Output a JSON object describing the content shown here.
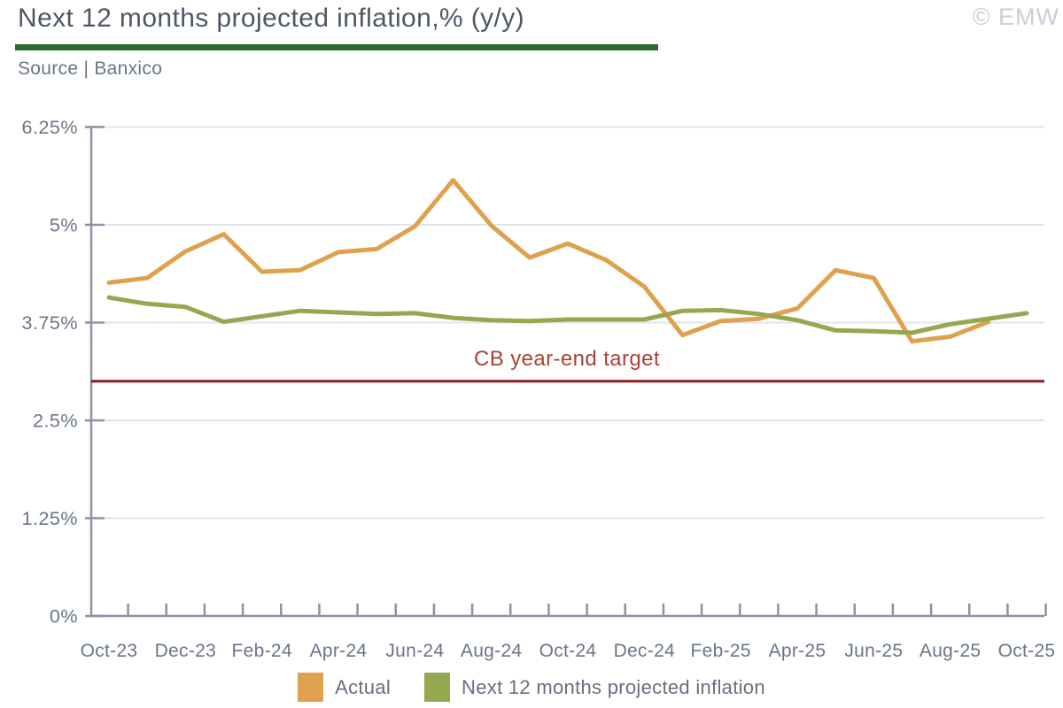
{
  "header": {
    "title": "Next 12 months projected inflation,% (y/y)",
    "source": "Source | Banxico",
    "watermark": "© EMW"
  },
  "legend": {
    "items": [
      {
        "label": "Actual",
        "color": "#dfa14e"
      },
      {
        "label": "Next 12 months projected inflation",
        "color": "#95a84f"
      }
    ]
  },
  "colors": {
    "title": "#4d5866",
    "title_underline": "#2e6b2f",
    "muted_text": "#6a7586",
    "watermark": "#c9ced7",
    "axis": "#8a93a3",
    "grid": "#dce6f1"
  },
  "chart_data": {
    "type": "line",
    "title": "Next 12 months projected inflation,% (y/y)",
    "source": "Source | Banxico",
    "x": [
      "Oct-23",
      "Nov-23",
      "Dec-23",
      "Jan-24",
      "Feb-24",
      "Mar-24",
      "Apr-24",
      "May-24",
      "Jun-24",
      "Jul-24",
      "Aug-24",
      "Sep-24",
      "Oct-24",
      "Nov-24",
      "Dec-24",
      "Jan-25",
      "Feb-25",
      "Mar-25",
      "Apr-25",
      "May-25",
      "Jun-25",
      "Jul-25",
      "Aug-25",
      "Sep-25",
      "Oct-25"
    ],
    "series": [
      {
        "name": "Actual",
        "color": "#dfa14e",
        "values": [
          4.26,
          4.32,
          4.66,
          4.88,
          4.4,
          4.42,
          4.65,
          4.69,
          4.98,
          5.57,
          4.99,
          4.58,
          4.76,
          4.55,
          4.21,
          3.59,
          3.77,
          3.8,
          3.93,
          4.42,
          4.32,
          3.51,
          3.57,
          3.76,
          null
        ]
      },
      {
        "name": "Next 12 months projected inflation",
        "color": "#95a84f",
        "values": [
          4.07,
          3.99,
          3.95,
          3.76,
          3.83,
          3.9,
          3.88,
          3.86,
          3.87,
          3.81,
          3.78,
          3.77,
          3.79,
          3.79,
          3.79,
          3.9,
          3.91,
          3.86,
          3.78,
          3.65,
          3.64,
          3.62,
          3.73,
          3.8,
          3.87
        ]
      }
    ],
    "ylim": [
      0,
      6.25
    ],
    "yticks": [
      0,
      1.25,
      2.5,
      3.75,
      5,
      6.25
    ],
    "ytick_labels": [
      "0%",
      "1.25%",
      "2.5%",
      "3.75%",
      "5%",
      "6.25%"
    ],
    "xtick_label_indices": [
      0,
      2,
      4,
      6,
      8,
      10,
      12,
      14,
      16,
      18,
      20,
      22,
      24
    ],
    "reference_line": {
      "value": 3.0,
      "label": "CB year-end target",
      "color": "#8e1b1b",
      "label_color": "#a84234"
    },
    "grid": "horizontal",
    "legend_position": "bottom"
  }
}
